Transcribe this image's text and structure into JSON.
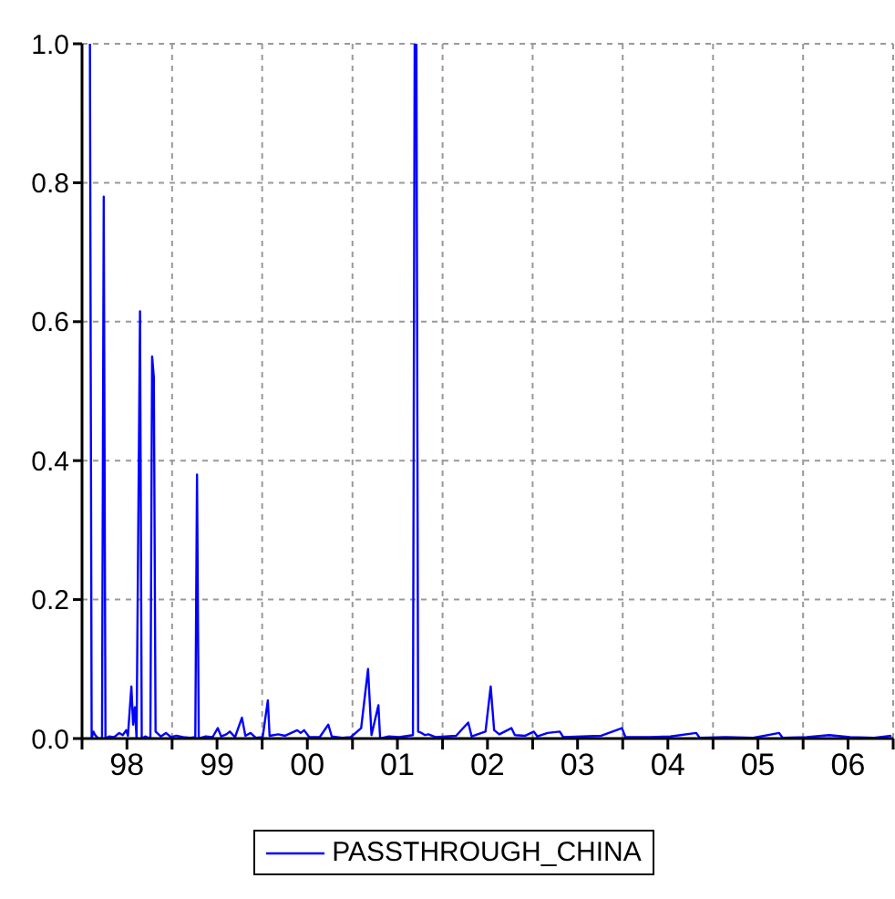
{
  "chart_data": {
    "type": "line",
    "xlim": [
      "1998-01-01",
      "2007-01-01"
    ],
    "ylim": [
      0,
      1
    ],
    "xticks": [
      {
        "value": "1998-01-01",
        "label": null
      },
      {
        "value": "1998-07-02",
        "label": "98"
      },
      {
        "value": "1999-01-01",
        "label": null
      },
      {
        "value": "1999-07-02",
        "label": "99"
      },
      {
        "value": "2000-01-01",
        "label": null
      },
      {
        "value": "2000-07-02",
        "label": "00"
      },
      {
        "value": "2001-01-01",
        "label": null
      },
      {
        "value": "2001-07-02",
        "label": "01"
      },
      {
        "value": "2002-01-01",
        "label": null
      },
      {
        "value": "2002-07-02",
        "label": "02"
      },
      {
        "value": "2003-01-01",
        "label": null
      },
      {
        "value": "2003-07-02",
        "label": "03"
      },
      {
        "value": "2004-01-01",
        "label": null
      },
      {
        "value": "2004-07-02",
        "label": "04"
      },
      {
        "value": "2005-01-01",
        "label": null
      },
      {
        "value": "2005-07-02",
        "label": "05"
      },
      {
        "value": "2006-01-01",
        "label": null
      },
      {
        "value": "2006-07-02",
        "label": "06"
      },
      {
        "value": "2007-01-01",
        "label": null
      }
    ],
    "yticks": [
      {
        "value": 0,
        "label": "0.0"
      },
      {
        "value": 0.2,
        "label": "0.2"
      },
      {
        "value": 0.4,
        "label": "0.4"
      },
      {
        "value": 0.6,
        "label": "0.6"
      },
      {
        "value": 0.8,
        "label": "0.8"
      },
      {
        "value": 1,
        "label": "1.0"
      }
    ],
    "grid": true,
    "legend": "bottom",
    "x": [
      "1998-02-02",
      "1998-02-09",
      "1998-02-16",
      "1998-02-23",
      "1998-03-09",
      "1998-03-23",
      "1998-03-30",
      "1998-04-06",
      "1998-04-20",
      "1998-05-11",
      "1998-06-01",
      "1998-06-15",
      "1998-06-29",
      "1998-07-06",
      "1998-07-20",
      "1998-07-27",
      "1998-08-03",
      "1998-08-10",
      "1998-08-24",
      "1998-08-31",
      "1998-09-14",
      "1998-10-05",
      "1998-10-12",
      "1998-10-19",
      "1998-10-26",
      "1998-11-16",
      "1998-12-07",
      "1998-12-28",
      "1999-01-18",
      "1999-02-15",
      "1999-03-15",
      "1999-04-05",
      "1999-04-12",
      "1999-04-19",
      "1999-05-17",
      "1999-06-14",
      "1999-07-05",
      "1999-07-19",
      "1999-08-09",
      "1999-08-23",
      "1999-09-13",
      "1999-10-11",
      "1999-10-25",
      "1999-11-15",
      "1999-12-06",
      "2000-01-03",
      "2000-01-24",
      "2000-01-31",
      "2000-03-06",
      "2000-04-03",
      "2000-05-22",
      "2000-06-05",
      "2000-06-19",
      "2000-07-10",
      "2000-08-21",
      "2000-09-25",
      "2000-10-09",
      "2000-11-20",
      "2000-12-25",
      "2001-02-05",
      "2001-03-05",
      "2001-03-19",
      "2001-04-16",
      "2001-04-23",
      "2001-05-28",
      "2001-07-09",
      "2001-09-03",
      "2001-09-10",
      "2001-09-17",
      "2001-09-24",
      "2001-10-08",
      "2001-10-22",
      "2001-11-05",
      "2001-12-03",
      "2002-01-14",
      "2002-02-25",
      "2002-04-15",
      "2002-04-29",
      "2002-06-24",
      "2002-07-15",
      "2002-07-29",
      "2002-08-19",
      "2002-10-07",
      "2002-10-21",
      "2002-12-02",
      "2003-01-06",
      "2003-01-20",
      "2003-03-03",
      "2003-04-21",
      "2003-05-05",
      "2003-07-21",
      "2003-10-06",
      "2003-12-29",
      "2004-01-12",
      "2004-04-19",
      "2004-07-12",
      "2004-10-25",
      "2004-11-08",
      "2005-02-21",
      "2005-06-13",
      "2005-09-26",
      "2005-10-10",
      "2006-01-16",
      "2006-04-17",
      "2006-07-10",
      "2006-10-16",
      "2006-12-25"
    ],
    "series": [
      {
        "name": "PASSTHROUGH_CHINA",
        "color": "#0000ff",
        "values": [
          1.0,
          0.0,
          0.01,
          0.005,
          0.0,
          0.0,
          0.78,
          0.0,
          0.003,
          0.002,
          0.008,
          0.005,
          0.012,
          0.004,
          0.075,
          0.02,
          0.045,
          0.0,
          0.615,
          0.0,
          0.003,
          0.0,
          0.55,
          0.52,
          0.01,
          0.003,
          0.008,
          0.002,
          0.004,
          0.002,
          0.001,
          0.002,
          0.38,
          0.0,
          0.003,
          0.002,
          0.015,
          0.003,
          0.006,
          0.01,
          0.002,
          0.03,
          0.004,
          0.008,
          0.001,
          0.002,
          0.055,
          0.004,
          0.006,
          0.004,
          0.012,
          0.008,
          0.012,
          0.002,
          0.002,
          0.02,
          0.003,
          0.001,
          0.002,
          0.015,
          0.1,
          0.005,
          0.048,
          0.0,
          0.003,
          0.002,
          0.005,
          1.0,
          1.0,
          0.01,
          0.008,
          0.005,
          0.006,
          0.002,
          0.003,
          0.004,
          0.023,
          0.003,
          0.01,
          0.075,
          0.012,
          0.006,
          0.015,
          0.005,
          0.004,
          0.01,
          0.003,
          0.008,
          0.01,
          0.002,
          0.003,
          0.004,
          0.015,
          0.002,
          0.002,
          0.003,
          0.008,
          0.001,
          0.002,
          0.001,
          0.008,
          0.001,
          0.002,
          0.005,
          0.002,
          0.001,
          0.004
        ]
      }
    ]
  }
}
